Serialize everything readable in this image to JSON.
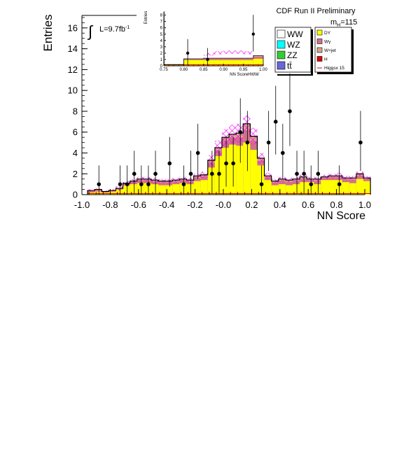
{
  "header": {
    "run_label": "CDF Run II Preliminary",
    "lumi_label": "L=9.7fb",
    "lumi_exp": "-1",
    "mass_prefix": "m",
    "mass_sub": "H",
    "mass_value": "=115"
  },
  "colors": {
    "signal_yellow": "#ffff00",
    "wgamma_pink": "#d2708c",
    "wjet_tan": "#d9a58b",
    "higgs_red": "#e00000",
    "band_magenta": "#ff00ff",
    "ww_white": "#ffffff",
    "wz_cyan": "#00ffff",
    "zz_green": "#33cc33",
    "tt_blue": "#6666dd"
  },
  "legend": {
    "left": [
      {
        "label": "WW",
        "color": "#ffffff"
      },
      {
        "label": "WZ",
        "color": "#00ffff"
      },
      {
        "label": "ZZ",
        "color": "#33cc33"
      },
      {
        "label": "tt̄",
        "color": "#6666dd"
      }
    ],
    "right": [
      {
        "label": "DY",
        "color": "#ffff00"
      },
      {
        "label": "Wγ",
        "color": "#d2708c"
      },
      {
        "label": "W+jet",
        "color": "#d9a58b"
      },
      {
        "label": "H",
        "color": "#e00000"
      },
      {
        "label": "Higgsx 15",
        "color": "#e00000",
        "line": true
      }
    ]
  },
  "chart_data": [
    {
      "id": "main",
      "type": "histogram",
      "xlabel": "NN Score",
      "ylabel": "Entries",
      "xlim": [
        -1.0,
        1.0
      ],
      "ylim": [
        0,
        17.2
      ],
      "x_ticks": [
        "-1.0",
        "-0.8",
        "-0.6",
        "-0.4",
        "-0.2",
        "-0.0",
        "0.2",
        "0.4",
        "0.6",
        "0.8",
        "1.0"
      ],
      "y_ticks": [
        "0",
        "2",
        "4",
        "6",
        "8",
        "10",
        "12",
        "14",
        "16"
      ],
      "bin_width": 0.05,
      "bin_edges_from": -0.96,
      "background_yellow": [
        0.2,
        0.3,
        0.2,
        0.3,
        0.5,
        0.9,
        1.0,
        1.1,
        1.1,
        1.0,
        0.9,
        0.9,
        1.0,
        1.1,
        1.0,
        1.3,
        1.4,
        2.6,
        3.7,
        4.5,
        4.8,
        4.7,
        5.0,
        4.3,
        2.8,
        1.4,
        0.9,
        1.0,
        0.9,
        1.0,
        1.2,
        1.2,
        1.0,
        1.4,
        1.4,
        1.4,
        1.2,
        1.1,
        1.5,
        1.3
      ],
      "background_total": [
        0.4,
        0.5,
        0.3,
        0.4,
        0.6,
        1.1,
        1.3,
        1.5,
        1.5,
        1.4,
        1.3,
        1.3,
        1.4,
        1.5,
        1.4,
        1.8,
        1.9,
        3.3,
        4.5,
        5.5,
        5.8,
        5.9,
        6.8,
        5.6,
        3.5,
        1.8,
        1.3,
        1.5,
        1.4,
        1.5,
        1.7,
        1.5,
        1.5,
        1.7,
        1.8,
        1.8,
        1.6,
        1.6,
        2.0,
        1.6
      ],
      "band_top": [
        0.5,
        0.6,
        0.4,
        0.5,
        0.8,
        1.3,
        1.5,
        1.7,
        1.7,
        1.6,
        1.5,
        1.5,
        1.6,
        1.7,
        1.6,
        2.0,
        2.2,
        3.8,
        5.2,
        6.3,
        6.7,
        6.8,
        7.6,
        6.4,
        4.0,
        2.1,
        1.5,
        1.7,
        1.6,
        1.7,
        1.9,
        1.7,
        1.7,
        1.9,
        2.0,
        2.1,
        1.8,
        1.8,
        2.2,
        1.8
      ],
      "band_bottom": [
        0.3,
        0.4,
        0.2,
        0.3,
        0.4,
        0.9,
        1.1,
        1.3,
        1.3,
        1.2,
        1.1,
        1.1,
        1.2,
        1.3,
        1.2,
        1.6,
        1.6,
        2.8,
        3.8,
        4.7,
        4.9,
        5.0,
        6.0,
        4.8,
        3.0,
        1.5,
        1.1,
        1.3,
        1.2,
        1.3,
        1.5,
        1.3,
        1.3,
        1.5,
        1.6,
        1.5,
        1.4,
        1.4,
        1.8,
        1.4
      ],
      "data_points": [
        {
          "x": -0.88,
          "y": 1
        },
        {
          "x": -0.73,
          "y": 1
        },
        {
          "x": -0.68,
          "y": 1
        },
        {
          "x": -0.63,
          "y": 2
        },
        {
          "x": -0.58,
          "y": 1
        },
        {
          "x": -0.53,
          "y": 1
        },
        {
          "x": -0.48,
          "y": 2
        },
        {
          "x": -0.38,
          "y": 3
        },
        {
          "x": -0.28,
          "y": 1
        },
        {
          "x": -0.23,
          "y": 2
        },
        {
          "x": -0.18,
          "y": 4
        },
        {
          "x": -0.08,
          "y": 2
        },
        {
          "x": -0.03,
          "y": 2
        },
        {
          "x": 0.02,
          "y": 3
        },
        {
          "x": 0.07,
          "y": 3
        },
        {
          "x": 0.12,
          "y": 6
        },
        {
          "x": 0.17,
          "y": 5
        },
        {
          "x": 0.27,
          "y": 1
        },
        {
          "x": 0.32,
          "y": 5
        },
        {
          "x": 0.37,
          "y": 7
        },
        {
          "x": 0.42,
          "y": 4
        },
        {
          "x": 0.47,
          "y": 8
        },
        {
          "x": 0.52,
          "y": 2
        },
        {
          "x": 0.57,
          "y": 2
        },
        {
          "x": 0.62,
          "y": 1
        },
        {
          "x": 0.67,
          "y": 2
        },
        {
          "x": 0.82,
          "y": 1
        },
        {
          "x": 0.97,
          "y": 5
        }
      ]
    },
    {
      "id": "inset",
      "type": "histogram",
      "xlabel": "NN ScoreHWW",
      "ylabel": "Entries",
      "xlim": [
        0.75,
        1.0
      ],
      "ylim": [
        0,
        8.5
      ],
      "x_ticks": [
        "0.75",
        "0.80",
        "0.85",
        "0.90",
        "0.95",
        "1.00"
      ],
      "y_ticks": [
        "0",
        "1",
        "2",
        "3",
        "4",
        "5",
        "6",
        "7",
        "8"
      ],
      "bin_edges": [
        0.75,
        0.8,
        0.85,
        0.875,
        0.9,
        0.925,
        0.95,
        0.975,
        1.0
      ],
      "background_yellow": [
        0.1,
        0.9,
        0.9,
        0.9,
        0.9,
        0.9,
        0.9,
        1.1
      ],
      "background_total": [
        0.2,
        1.1,
        1.2,
        1.2,
        1.2,
        1.2,
        1.2,
        1.6
      ],
      "band_top": [
        0.2,
        1.2,
        2.0,
        2.3,
        2.4,
        2.4,
        2.3,
        0
      ],
      "band_bottom": [
        0.2,
        1.2,
        1.6,
        1.8,
        1.9,
        1.9,
        1.8,
        0
      ],
      "data_points": [
        {
          "x": 0.81,
          "y": 2
        },
        {
          "x": 0.86,
          "y": 1
        },
        {
          "x": 0.975,
          "y": 5
        }
      ]
    }
  ]
}
